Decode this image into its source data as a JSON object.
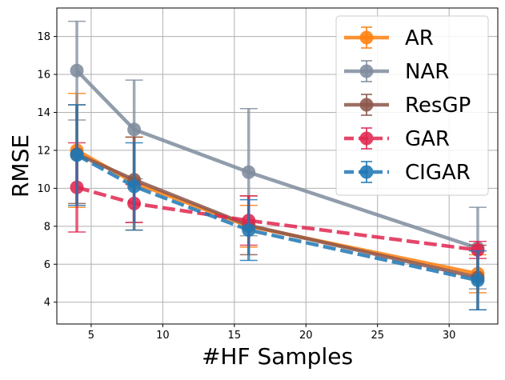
{
  "chart_data": {
    "type": "line",
    "title": "",
    "xlabel": "#HF Samples",
    "ylabel": "RMSE",
    "xlim": [
      2.6,
      33.4
    ],
    "ylim": [
      2.85,
      19.5
    ],
    "xticks": [
      5,
      10,
      15,
      20,
      25,
      30
    ],
    "yticks": [
      4,
      6,
      8,
      10,
      12,
      14,
      16,
      18
    ],
    "grid": true,
    "legend_position": "top-right",
    "x": [
      4,
      8,
      16,
      32
    ],
    "series": [
      {
        "name": "AR",
        "color": "#ff7f0e",
        "line_style": "solid",
        "values": [
          12.0,
          10.3,
          8.0,
          5.5
        ],
        "error_low": [
          9.0,
          7.8,
          6.9,
          4.5
        ],
        "error_high": [
          15.0,
          12.7,
          9.1,
          6.5
        ]
      },
      {
        "name": "NAR",
        "color": "#7f8c9d",
        "line_style": "solid",
        "values": [
          16.2,
          13.1,
          10.85,
          6.85
        ],
        "error_low": [
          13.6,
          10.5,
          7.5,
          4.7
        ],
        "error_high": [
          18.8,
          15.7,
          14.2,
          9.0
        ]
      },
      {
        "name": "ResGP",
        "color": "#8c564b",
        "line_style": "solid",
        "values": [
          11.8,
          10.45,
          8.05,
          5.3
        ],
        "error_low": [
          9.2,
          8.2,
          6.5,
          3.6
        ],
        "error_high": [
          14.4,
          12.7,
          9.6,
          7.0
        ]
      },
      {
        "name": "GAR",
        "color": "#e0264f",
        "line_style": "dashed",
        "values": [
          10.05,
          9.2,
          8.3,
          6.75
        ],
        "error_low": [
          7.7,
          8.2,
          7.0,
          6.3
        ],
        "error_high": [
          12.4,
          10.2,
          9.6,
          7.2
        ]
      },
      {
        "name": "CIGAR",
        "color": "#1f77b4",
        "line_style": "dashed",
        "values": [
          11.75,
          10.1,
          7.8,
          5.15
        ],
        "error_low": [
          9.1,
          7.8,
          6.2,
          3.6
        ],
        "error_high": [
          14.4,
          12.4,
          9.4,
          6.7
        ]
      }
    ]
  }
}
